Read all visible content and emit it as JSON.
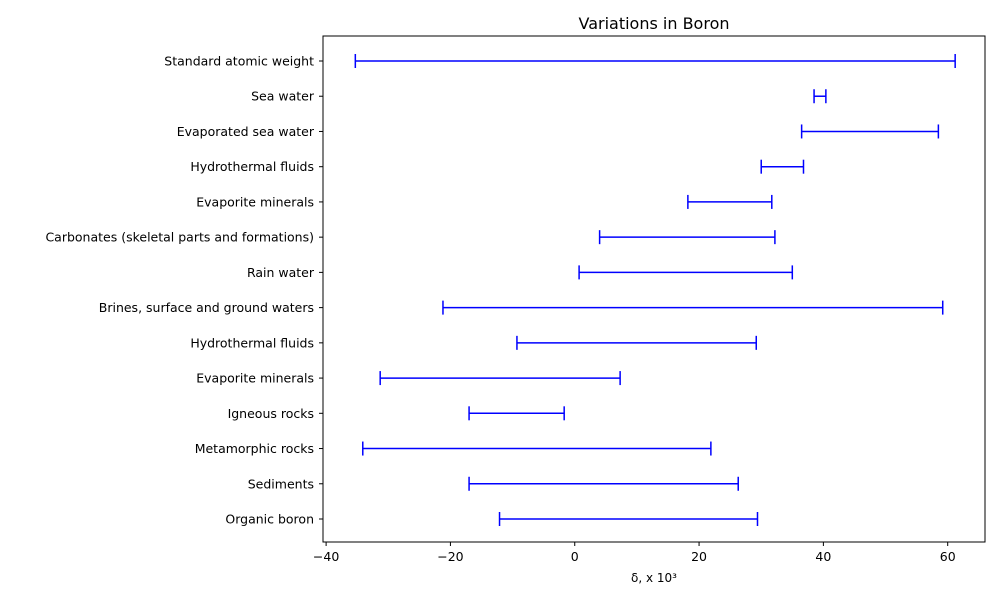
{
  "chart_data": {
    "type": "range-errorbar",
    "title": "Variations  in Boron",
    "xlabel": "δ, x 10³",
    "ylabel": "",
    "xlim": [
      -40.5,
      66
    ],
    "xticks": [
      -40,
      -20,
      0,
      20,
      40,
      60
    ],
    "grid": false,
    "legend": "none",
    "color": "#0000ff",
    "categories": [
      "Standard atomic weight",
      "Sea water",
      "Evaporated sea water",
      "Hydrothermal fluids",
      "Evaporite minerals ",
      "Carbonates (skeletal parts and formations)",
      "Rain water",
      "Brines, surface and ground waters",
      "Hydrothermal fluids ",
      "Evaporite minerals",
      "Igneous rocks",
      "Metamorphic rocks",
      "Sediments",
      "Organic boron"
    ],
    "ranges": [
      [
        -35.3,
        61.2
      ],
      [
        38.5,
        40.4
      ],
      [
        36.5,
        58.5
      ],
      [
        30.0,
        36.8
      ],
      [
        18.2,
        31.7
      ],
      [
        4.0,
        32.2
      ],
      [
        0.7,
        35.0
      ],
      [
        -21.2,
        59.2
      ],
      [
        -9.3,
        29.2
      ],
      [
        -31.3,
        7.3
      ],
      [
        -17.0,
        -1.7
      ],
      [
        -34.1,
        21.9
      ],
      [
        -17.0,
        26.3
      ],
      [
        -12.1,
        29.4
      ]
    ]
  }
}
